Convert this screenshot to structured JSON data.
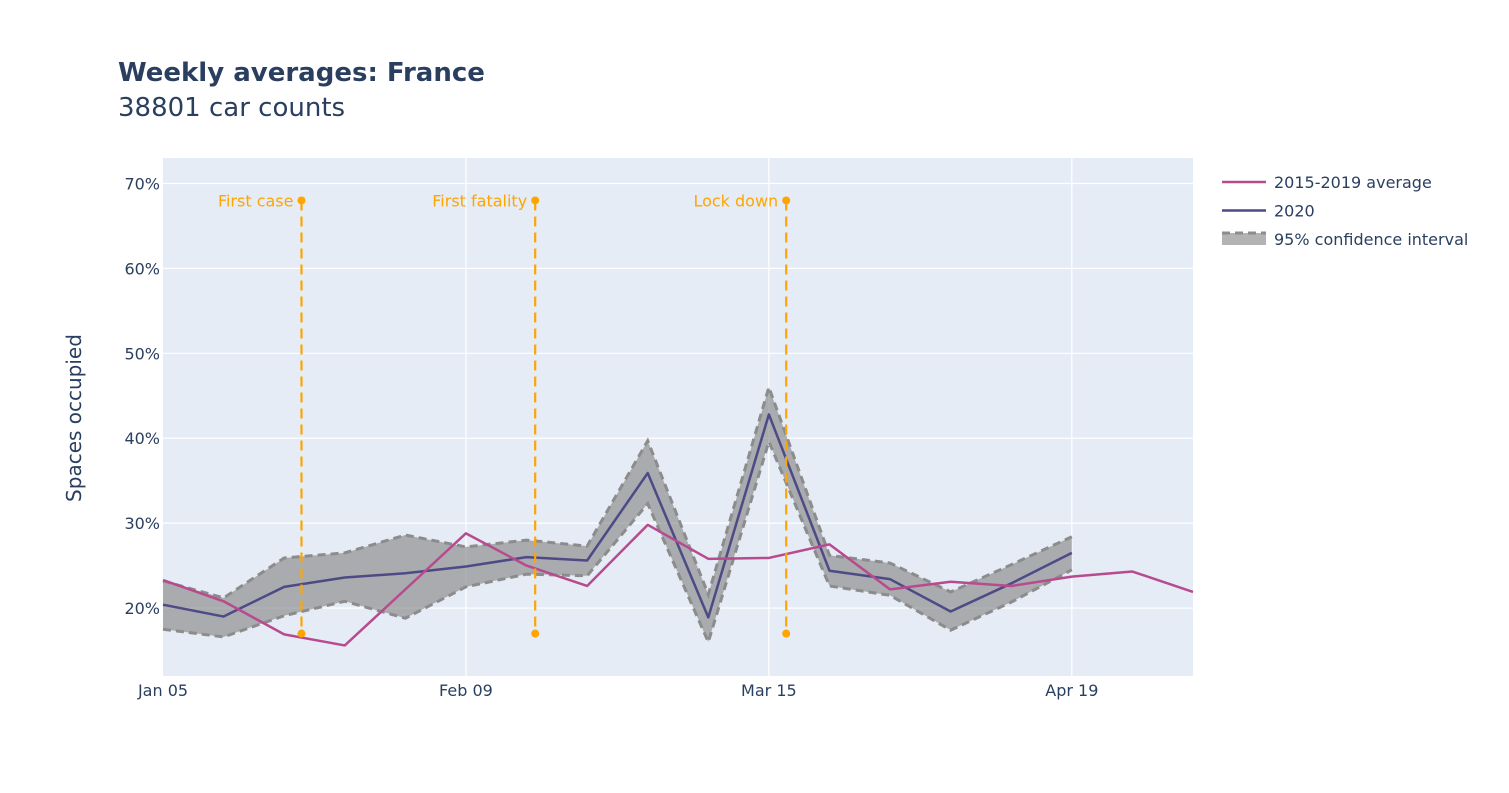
{
  "chart_data": {
    "type": "line",
    "title": "Weekly averages: France",
    "subtitle": "38801 car counts",
    "ylabel": "Spaces occupied",
    "xlabel": "",
    "x_start": "2020-01-05",
    "x_end": "2020-05-03",
    "x_ticks": [
      "Jan 05",
      "Feb 09",
      "Mar 15",
      "Apr 19"
    ],
    "x_tick_dates": [
      "2020-01-05",
      "2020-02-09",
      "2020-03-15",
      "2020-04-19"
    ],
    "ylim": [
      12,
      73
    ],
    "y_ticks": [
      20,
      30,
      40,
      50,
      60,
      70
    ],
    "y_tick_labels": [
      "20%",
      "30%",
      "40%",
      "50%",
      "60%",
      "70%"
    ],
    "grid": true,
    "legend_position": "top-right",
    "series": [
      {
        "name": "2015-2019 average",
        "color": "#b84a8e",
        "x": [
          "2020-01-05",
          "2020-01-12",
          "2020-01-19",
          "2020-01-26",
          "2020-02-02",
          "2020-02-09",
          "2020-02-16",
          "2020-02-23",
          "2020-03-01",
          "2020-03-08",
          "2020-03-15",
          "2020-03-22",
          "2020-03-29",
          "2020-04-05",
          "2020-04-12",
          "2020-04-19",
          "2020-04-26",
          "2020-05-03"
        ],
        "values": [
          23.3,
          20.8,
          16.9,
          15.6,
          22.2,
          28.8,
          25.0,
          22.6,
          29.8,
          25.8,
          25.9,
          27.5,
          22.2,
          23.1,
          22.6,
          23.7,
          24.3,
          21.9
        ]
      },
      {
        "name": "2020",
        "color": "#4d4a85",
        "x": [
          "2020-01-05",
          "2020-01-12",
          "2020-01-19",
          "2020-01-26",
          "2020-02-02",
          "2020-02-09",
          "2020-02-16",
          "2020-02-23",
          "2020-03-01",
          "2020-03-08",
          "2020-03-15",
          "2020-03-22",
          "2020-03-29",
          "2020-04-05",
          "2020-04-12",
          "2020-04-19"
        ],
        "values": [
          20.4,
          19.0,
          22.5,
          23.6,
          24.1,
          24.9,
          26.0,
          25.6,
          35.9,
          18.9,
          42.8,
          24.4,
          23.4,
          19.6,
          22.9,
          26.5
        ]
      },
      {
        "name": "95% confidence interval",
        "color": "#808080",
        "x": [
          "2020-01-05",
          "2020-01-12",
          "2020-01-19",
          "2020-01-26",
          "2020-02-02",
          "2020-02-09",
          "2020-02-16",
          "2020-02-23",
          "2020-03-01",
          "2020-03-08",
          "2020-03-15",
          "2020-03-22",
          "2020-03-29",
          "2020-04-05",
          "2020-04-12",
          "2020-04-19"
        ],
        "upper": [
          23.2,
          21.2,
          25.9,
          26.5,
          28.6,
          27.2,
          28.0,
          27.3,
          39.7,
          21.6,
          46.0,
          26.2,
          25.3,
          21.9,
          25.1,
          28.4
        ],
        "lower": [
          17.5,
          16.6,
          19.1,
          20.8,
          18.8,
          22.5,
          24.0,
          23.8,
          32.3,
          16.0,
          39.6,
          22.6,
          21.5,
          17.4,
          20.7,
          24.5
        ]
      }
    ],
    "annotations": [
      {
        "label": "First case",
        "date": "2020-01-21",
        "y_top": 68,
        "y_bottom": 17,
        "color": "#ffa500"
      },
      {
        "label": "First fatality",
        "date": "2020-02-17",
        "y_top": 68,
        "y_bottom": 17,
        "color": "#ffa500"
      },
      {
        "label": "Lock down",
        "date": "2020-03-17",
        "y_top": 68,
        "y_bottom": 17,
        "color": "#ffa500"
      }
    ],
    "colors": {
      "plot_background": "#e5ecf6",
      "grid": "#ffffff",
      "text": "#2a3f5f"
    }
  }
}
